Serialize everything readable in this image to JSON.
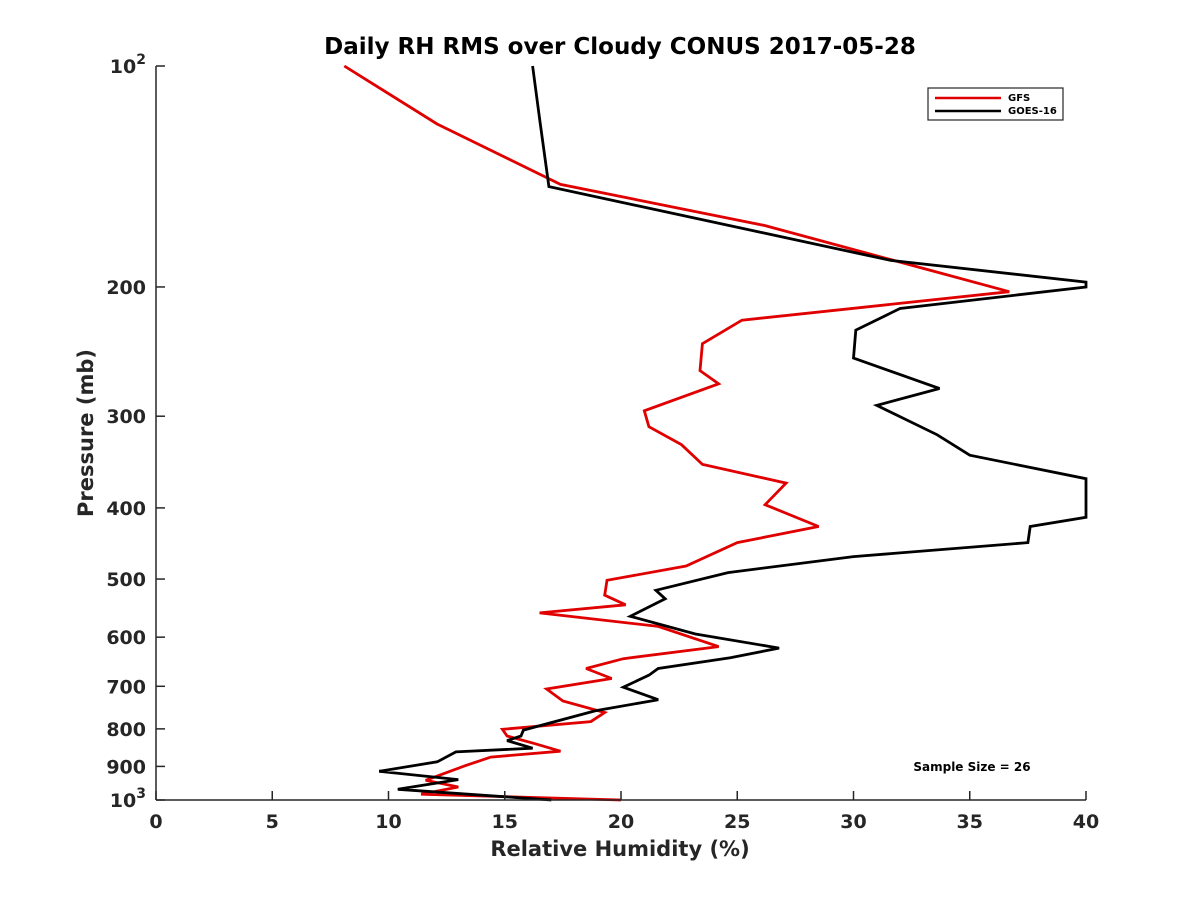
{
  "chart_data": {
    "type": "line",
    "title": "Daily RH RMS over Cloudy CONUS 2017-05-28",
    "xlabel": "Relative Humidity (%)",
    "ylabel": "Pressure (mb)",
    "xlim": [
      0,
      40
    ],
    "ylim": [
      100,
      1000
    ],
    "yscale": "log",
    "y_reversed": true,
    "legend_position": "top-right",
    "x_ticks": [
      {
        "value": 0,
        "label": "0"
      },
      {
        "value": 5,
        "label": "5"
      },
      {
        "value": 10,
        "label": "10"
      },
      {
        "value": 15,
        "label": "15"
      },
      {
        "value": 20,
        "label": "20"
      },
      {
        "value": 25,
        "label": "25"
      },
      {
        "value": 30,
        "label": "30"
      },
      {
        "value": 35,
        "label": "35"
      },
      {
        "value": 40,
        "label": "40"
      }
    ],
    "y_ticks": [
      {
        "value": 100,
        "label": "10",
        "exp": "2"
      },
      {
        "value": 200,
        "label": "200"
      },
      {
        "value": 300,
        "label": "300"
      },
      {
        "value": 400,
        "label": "400"
      },
      {
        "value": 500,
        "label": "500"
      },
      {
        "value": 600,
        "label": "600"
      },
      {
        "value": 700,
        "label": "700"
      },
      {
        "value": 800,
        "label": "800"
      },
      {
        "value": 900,
        "label": "900"
      },
      {
        "value": 1000,
        "label": "10",
        "exp": "3"
      }
    ],
    "annotation": "Sample Size = 26",
    "series": [
      {
        "name": "GFS",
        "color": "#e00000",
        "x": [
          8.1,
          12.1,
          17.4,
          26.2,
          36.7,
          25.2,
          23.5,
          23.4,
          24.2,
          21.0,
          21.2,
          22.6,
          23.5,
          27.1,
          26.2,
          28.5,
          25.0,
          22.8,
          19.4,
          19.3,
          20.2,
          16.5,
          21.6,
          24.2,
          20.1,
          18.5,
          19.6,
          16.8,
          17.5,
          19.3,
          18.7,
          14.9,
          15.1,
          16.3,
          17.4,
          14.4,
          13.3,
          11.6,
          13.0,
          11.4,
          20.0
        ],
        "y": [
          100,
          120,
          145,
          165,
          203,
          222,
          239,
          260,
          271,
          295,
          310,
          328,
          349,
          370,
          396,
          424,
          446,
          480,
          502,
          526,
          542,
          556,
          580,
          618,
          642,
          662,
          683,
          706,
          733,
          760,
          782,
          801,
          818,
          838,
          858,
          874,
          898,
          940,
          960,
          982,
          1000
        ]
      },
      {
        "name": "GOES-16",
        "color": "#000000",
        "x": [
          16.2,
          16.5,
          16.9,
          31.6,
          40.0,
          40.0,
          32.0,
          30.1,
          30.0,
          33.7,
          31.0,
          33.6,
          35.0,
          40.0,
          40.0,
          37.6,
          37.5,
          30.0,
          24.6,
          21.5,
          21.9,
          20.4,
          23.2,
          26.8,
          24.7,
          21.6,
          21.2,
          20.1,
          21.6,
          18.9,
          15.8,
          15.7,
          15.1,
          16.2,
          12.9,
          12.1,
          9.6,
          13.0,
          10.4,
          17.0
        ],
        "y": [
          100,
          118,
          146,
          184,
          197,
          200,
          214,
          229,
          250,
          275,
          290,
          318,
          339,
          365,
          412,
          424,
          446,
          466,
          490,
          518,
          532,
          562,
          594,
          621,
          640,
          662,
          676,
          702,
          730,
          756,
          803,
          818,
          830,
          850,
          860,
          887,
          914,
          938,
          967,
          1000
        ]
      }
    ]
  }
}
